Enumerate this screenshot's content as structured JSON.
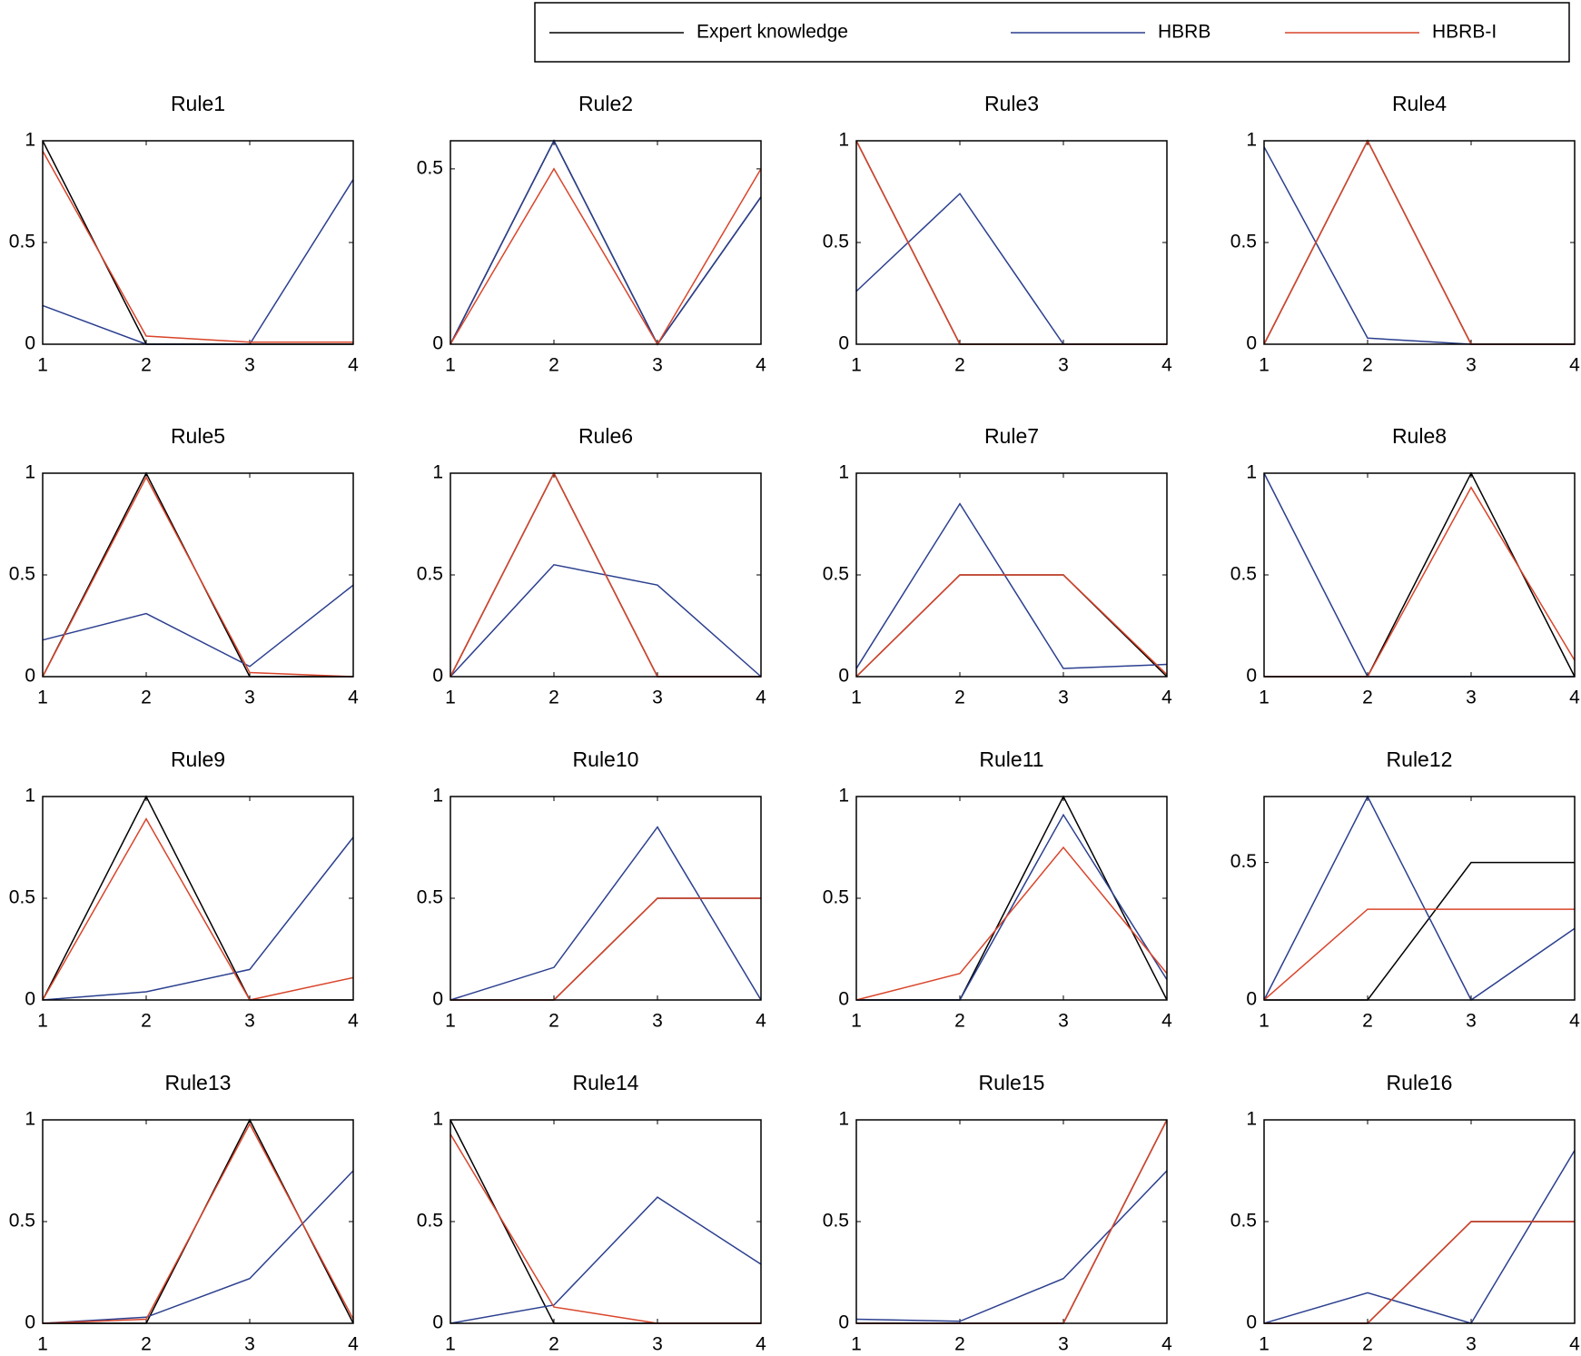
{
  "chart_data": [
    {
      "type": "line",
      "title": "Rule1",
      "x": [
        1,
        2,
        3,
        4
      ],
      "xlim": [
        1,
        4
      ],
      "xticks": [
        1,
        2,
        3,
        4
      ],
      "ylim": [
        0,
        1
      ],
      "yticks": [
        0,
        0.5,
        1
      ],
      "series": [
        {
          "name": "Expert knowledge",
          "color": "#000000",
          "values": [
            1,
            0,
            0,
            0
          ]
        },
        {
          "name": "HBRB",
          "color": "#2b3f8f",
          "values": [
            0.19,
            0,
            0,
            0.81
          ]
        },
        {
          "name": "HBRB-I",
          "color": "#d9452b",
          "values": [
            0.95,
            0.04,
            0.01,
            0.01
          ]
        }
      ]
    },
    {
      "type": "line",
      "title": "Rule2",
      "x": [
        1,
        2,
        3,
        4
      ],
      "xlim": [
        1,
        4
      ],
      "xticks": [
        1,
        2,
        3,
        4
      ],
      "ylim": [
        0,
        0.58
      ],
      "yticks": [
        0,
        0.5
      ],
      "series": [
        {
          "name": "Expert knowledge",
          "color": "#000000",
          "values": [
            0,
            0.58,
            0,
            0.42
          ]
        },
        {
          "name": "HBRB",
          "color": "#2b3f8f",
          "values": [
            0,
            0.58,
            0,
            0.42
          ]
        },
        {
          "name": "HBRB-I",
          "color": "#d9452b",
          "values": [
            0,
            0.5,
            0,
            0.5
          ]
        }
      ]
    },
    {
      "type": "line",
      "title": "Rule3",
      "x": [
        1,
        2,
        3,
        4
      ],
      "xlim": [
        1,
        4
      ],
      "xticks": [
        1,
        2,
        3,
        4
      ],
      "ylim": [
        0,
        1
      ],
      "yticks": [
        0,
        0.5,
        1
      ],
      "series": [
        {
          "name": "Expert knowledge",
          "color": "#000000",
          "values": [
            1,
            0,
            0,
            0
          ]
        },
        {
          "name": "HBRB",
          "color": "#2b3f8f",
          "values": [
            0.26,
            0.74,
            0,
            0
          ]
        },
        {
          "name": "HBRB-I",
          "color": "#d9452b",
          "values": [
            1,
            0,
            0,
            0
          ]
        }
      ]
    },
    {
      "type": "line",
      "title": "Rule4",
      "x": [
        1,
        2,
        3,
        4
      ],
      "xlim": [
        1,
        4
      ],
      "xticks": [
        1,
        2,
        3,
        4
      ],
      "ylim": [
        0,
        1
      ],
      "yticks": [
        0,
        0.5,
        1
      ],
      "series": [
        {
          "name": "Expert knowledge",
          "color": "#000000",
          "values": [
            0,
            1,
            0,
            0
          ]
        },
        {
          "name": "HBRB",
          "color": "#2b3f8f",
          "values": [
            0.97,
            0.03,
            0,
            0
          ]
        },
        {
          "name": "HBRB-I",
          "color": "#d9452b",
          "values": [
            0,
            1,
            0,
            0
          ]
        }
      ]
    },
    {
      "type": "line",
      "title": "Rule5",
      "x": [
        1,
        2,
        3,
        4
      ],
      "xlim": [
        1,
        4
      ],
      "xticks": [
        1,
        2,
        3,
        4
      ],
      "ylim": [
        0,
        1
      ],
      "yticks": [
        0,
        0.5,
        1
      ],
      "series": [
        {
          "name": "Expert knowledge",
          "color": "#000000",
          "values": [
            0,
            1,
            0,
            0
          ]
        },
        {
          "name": "HBRB",
          "color": "#2b3f8f",
          "values": [
            0.18,
            0.31,
            0.05,
            0.45
          ]
        },
        {
          "name": "HBRB-I",
          "color": "#d9452b",
          "values": [
            0,
            0.98,
            0.02,
            0
          ]
        }
      ]
    },
    {
      "type": "line",
      "title": "Rule6",
      "x": [
        1,
        2,
        3,
        4
      ],
      "xlim": [
        1,
        4
      ],
      "xticks": [
        1,
        2,
        3,
        4
      ],
      "ylim": [
        0,
        1
      ],
      "yticks": [
        0,
        0.5,
        1
      ],
      "series": [
        {
          "name": "Expert knowledge",
          "color": "#000000",
          "values": [
            0,
            1,
            0,
            0
          ]
        },
        {
          "name": "HBRB",
          "color": "#2b3f8f",
          "values": [
            0,
            0.55,
            0.45,
            0
          ]
        },
        {
          "name": "HBRB-I",
          "color": "#d9452b",
          "values": [
            0,
            1,
            0,
            0
          ]
        }
      ]
    },
    {
      "type": "line",
      "title": "Rule7",
      "x": [
        1,
        2,
        3,
        4
      ],
      "xlim": [
        1,
        4
      ],
      "xticks": [
        1,
        2,
        3,
        4
      ],
      "ylim": [
        0,
        1
      ],
      "yticks": [
        0,
        0.5,
        1
      ],
      "series": [
        {
          "name": "Expert knowledge",
          "color": "#000000",
          "values": [
            0,
            0.5,
            0.5,
            0
          ]
        },
        {
          "name": "HBRB",
          "color": "#2b3f8f",
          "values": [
            0.04,
            0.85,
            0.04,
            0.06
          ]
        },
        {
          "name": "HBRB-I",
          "color": "#d9452b",
          "values": [
            0,
            0.5,
            0.5,
            0.01
          ]
        }
      ]
    },
    {
      "type": "line",
      "title": "Rule8",
      "x": [
        1,
        2,
        3,
        4
      ],
      "xlim": [
        1,
        4
      ],
      "xticks": [
        1,
        2,
        3,
        4
      ],
      "ylim": [
        0,
        1
      ],
      "yticks": [
        0,
        0.5,
        1
      ],
      "series": [
        {
          "name": "Expert knowledge",
          "color": "#000000",
          "values": [
            0,
            0,
            1,
            0
          ]
        },
        {
          "name": "HBRB",
          "color": "#2b3f8f",
          "values": [
            1,
            0,
            0,
            0
          ]
        },
        {
          "name": "HBRB-I",
          "color": "#d9452b",
          "values": [
            0,
            0,
            0.93,
            0.08
          ]
        }
      ]
    },
    {
      "type": "line",
      "title": "Rule9",
      "x": [
        1,
        2,
        3,
        4
      ],
      "xlim": [
        1,
        4
      ],
      "xticks": [
        1,
        2,
        3,
        4
      ],
      "ylim": [
        0,
        1
      ],
      "yticks": [
        0,
        0.5,
        1
      ],
      "series": [
        {
          "name": "Expert knowledge",
          "color": "#000000",
          "values": [
            0,
            1,
            0,
            0
          ]
        },
        {
          "name": "HBRB",
          "color": "#2b3f8f",
          "values": [
            0,
            0.04,
            0.15,
            0.8
          ]
        },
        {
          "name": "HBRB-I",
          "color": "#d9452b",
          "values": [
            0,
            0.89,
            0,
            0.11
          ]
        }
      ]
    },
    {
      "type": "line",
      "title": "Rule10",
      "x": [
        1,
        2,
        3,
        4
      ],
      "xlim": [
        1,
        4
      ],
      "xticks": [
        1,
        2,
        3,
        4
      ],
      "ylim": [
        0,
        1
      ],
      "yticks": [
        0,
        0.5,
        1
      ],
      "series": [
        {
          "name": "Expert knowledge",
          "color": "#000000",
          "values": [
            0,
            0,
            0.5,
            0.5
          ]
        },
        {
          "name": "HBRB",
          "color": "#2b3f8f",
          "values": [
            0,
            0.16,
            0.85,
            0
          ]
        },
        {
          "name": "HBRB-I",
          "color": "#d9452b",
          "values": [
            0,
            0,
            0.5,
            0.5
          ]
        }
      ]
    },
    {
      "type": "line",
      "title": "Rule11",
      "x": [
        1,
        2,
        3,
        4
      ],
      "xlim": [
        1,
        4
      ],
      "xticks": [
        1,
        2,
        3,
        4
      ],
      "ylim": [
        0,
        1
      ],
      "yticks": [
        0,
        0.5,
        1
      ],
      "series": [
        {
          "name": "Expert knowledge",
          "color": "#000000",
          "values": [
            0,
            0,
            1,
            0
          ]
        },
        {
          "name": "HBRB",
          "color": "#2b3f8f",
          "values": [
            0,
            0,
            0.91,
            0.1
          ]
        },
        {
          "name": "HBRB-I",
          "color": "#d9452b",
          "values": [
            0,
            0.13,
            0.75,
            0.13
          ]
        }
      ]
    },
    {
      "type": "line",
      "title": "Rule12",
      "x": [
        1,
        2,
        3,
        4
      ],
      "xlim": [
        1,
        4
      ],
      "xticks": [
        1,
        2,
        3,
        4
      ],
      "ylim": [
        0,
        0.74
      ],
      "yticks": [
        0,
        0.5
      ],
      "series": [
        {
          "name": "Expert knowledge",
          "color": "#000000",
          "values": [
            0,
            0,
            0.5,
            0.5
          ]
        },
        {
          "name": "HBRB",
          "color": "#2b3f8f",
          "values": [
            0,
            0.74,
            0,
            0.26
          ]
        },
        {
          "name": "HBRB-I",
          "color": "#d9452b",
          "values": [
            0,
            0.33,
            0.33,
            0.33
          ]
        }
      ]
    },
    {
      "type": "line",
      "title": "Rule13",
      "x": [
        1,
        2,
        3,
        4
      ],
      "xlim": [
        1,
        4
      ],
      "xticks": [
        1,
        2,
        3,
        4
      ],
      "ylim": [
        0,
        1
      ],
      "yticks": [
        0,
        0.5,
        1
      ],
      "series": [
        {
          "name": "Expert knowledge",
          "color": "#000000",
          "values": [
            0,
            0,
            1,
            0
          ]
        },
        {
          "name": "HBRB",
          "color": "#2b3f8f",
          "values": [
            0,
            0.03,
            0.22,
            0.75
          ]
        },
        {
          "name": "HBRB-I",
          "color": "#d9452b",
          "values": [
            0,
            0.02,
            0.98,
            0.02
          ]
        }
      ]
    },
    {
      "type": "line",
      "title": "Rule14",
      "x": [
        1,
        2,
        3,
        4
      ],
      "xlim": [
        1,
        4
      ],
      "xticks": [
        1,
        2,
        3,
        4
      ],
      "ylim": [
        0,
        1
      ],
      "yticks": [
        0,
        0.5,
        1
      ],
      "series": [
        {
          "name": "Expert knowledge",
          "color": "#000000",
          "values": [
            1,
            0,
            0,
            0
          ]
        },
        {
          "name": "HBRB",
          "color": "#2b3f8f",
          "values": [
            0,
            0.09,
            0.62,
            0.29
          ]
        },
        {
          "name": "HBRB-I",
          "color": "#d9452b",
          "values": [
            0.93,
            0.08,
            0,
            0
          ]
        }
      ]
    },
    {
      "type": "line",
      "title": "Rule15",
      "x": [
        1,
        2,
        3,
        4
      ],
      "xlim": [
        1,
        4
      ],
      "xticks": [
        1,
        2,
        3,
        4
      ],
      "ylim": [
        0,
        1
      ],
      "yticks": [
        0,
        0.5,
        1
      ],
      "series": [
        {
          "name": "Expert knowledge",
          "color": "#000000",
          "values": [
            0,
            0,
            0,
            1
          ]
        },
        {
          "name": "HBRB",
          "color": "#2b3f8f",
          "values": [
            0.02,
            0.01,
            0.22,
            0.75
          ]
        },
        {
          "name": "HBRB-I",
          "color": "#d9452b",
          "values": [
            0,
            0,
            0,
            1
          ]
        }
      ]
    },
    {
      "type": "line",
      "title": "Rule16",
      "x": [
        1,
        2,
        3,
        4
      ],
      "xlim": [
        1,
        4
      ],
      "xticks": [
        1,
        2,
        3,
        4
      ],
      "ylim": [
        0,
        1
      ],
      "yticks": [
        0,
        0.5,
        1
      ],
      "series": [
        {
          "name": "Expert knowledge",
          "color": "#000000",
          "values": [
            0,
            0,
            0.5,
            0.5
          ]
        },
        {
          "name": "HBRB",
          "color": "#2b3f8f",
          "values": [
            0,
            0.15,
            0,
            0.85
          ]
        },
        {
          "name": "HBRB-I",
          "color": "#d9452b",
          "values": [
            0,
            0,
            0.5,
            0.5
          ]
        }
      ]
    }
  ]
}
